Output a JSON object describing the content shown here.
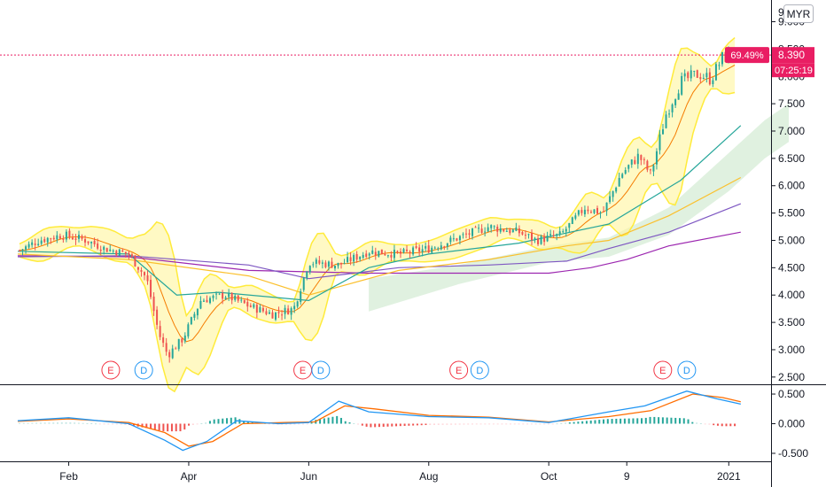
{
  "currency": "MYR",
  "chart_data": {
    "type": "candlestick",
    "price_axis": {
      "range": [
        2.4,
        9.3
      ],
      "ticks": [
        "9.000",
        "8.500",
        "8.000",
        "7.500",
        "7.000",
        "6.500",
        "6.000",
        "5.500",
        "5.000",
        "4.500",
        "4.000",
        "3.500",
        "3.000",
        "2.500"
      ],
      "top_partial": "9"
    },
    "time_axis": {
      "labels": [
        {
          "label": "Feb",
          "t": 1.0
        },
        {
          "label": "Apr",
          "t": 3.0
        },
        {
          "label": "Jun",
          "t": 5.0
        },
        {
          "label": "Aug",
          "t": 7.0
        },
        {
          "label": "Oct",
          "t": 9.0
        },
        {
          "label": "9",
          "t": 10.3
        },
        {
          "label": "2021",
          "t": 12.0
        }
      ],
      "range": [
        0.15,
        13.0
      ]
    },
    "last_price": {
      "value": 8.39,
      "label": "8.390",
      "change": "69.49%",
      "countdown": "07:25:19",
      "color": "#e91e63"
    },
    "events": [
      {
        "kind": "E",
        "t": 1.7,
        "color": "#f23645"
      },
      {
        "kind": "D",
        "t": 2.25,
        "color": "#2196f3"
      },
      {
        "kind": "E",
        "t": 4.9,
        "color": "#f23645"
      },
      {
        "kind": "D",
        "t": 5.2,
        "color": "#2196f3"
      },
      {
        "kind": "E",
        "t": 7.5,
        "color": "#f23645"
      },
      {
        "kind": "D",
        "t": 7.85,
        "color": "#2196f3"
      },
      {
        "kind": "E",
        "t": 10.9,
        "color": "#f23645"
      },
      {
        "kind": "D",
        "t": 11.3,
        "color": "#2196f3"
      }
    ],
    "price_path": [
      [
        0.15,
        4.8
      ],
      [
        0.5,
        5.0
      ],
      [
        0.9,
        5.1
      ],
      [
        1.3,
        5.0
      ],
      [
        1.6,
        4.85
      ],
      [
        2.0,
        4.75
      ],
      [
        2.3,
        4.3
      ],
      [
        2.5,
        3.3
      ],
      [
        2.65,
        2.9
      ],
      [
        2.9,
        3.2
      ],
      [
        3.2,
        3.9
      ],
      [
        3.6,
        4.0
      ],
      [
        4.0,
        3.8
      ],
      [
        4.4,
        3.65
      ],
      [
        4.75,
        3.75
      ],
      [
        5.0,
        4.6
      ],
      [
        5.5,
        4.55
      ],
      [
        6.0,
        4.8
      ],
      [
        6.5,
        4.75
      ],
      [
        7.0,
        4.85
      ],
      [
        7.5,
        5.05
      ],
      [
        8.0,
        5.25
      ],
      [
        8.5,
        5.15
      ],
      [
        8.8,
        5.0
      ],
      [
        9.2,
        5.1
      ],
      [
        9.6,
        5.6
      ],
      [
        9.9,
        5.5
      ],
      [
        10.2,
        6.2
      ],
      [
        10.5,
        6.55
      ],
      [
        10.7,
        6.2
      ],
      [
        10.95,
        7.3
      ],
      [
        11.2,
        7.9
      ],
      [
        11.5,
        8.05
      ],
      [
        11.7,
        7.95
      ],
      [
        11.9,
        8.35
      ],
      [
        12.1,
        8.39
      ]
    ],
    "overlays": {
      "sma_long": [
        [
          0.15,
          4.72
        ],
        [
          2.0,
          4.7
        ],
        [
          4.0,
          4.45
        ],
        [
          6.0,
          4.4
        ],
        [
          8.0,
          4.4
        ],
        [
          9.0,
          4.4
        ],
        [
          9.7,
          4.5
        ],
        [
          10.3,
          4.65
        ],
        [
          11.0,
          4.9
        ],
        [
          12.2,
          5.15
        ]
      ],
      "sma_mid": [
        [
          0.15,
          4.7
        ],
        [
          2.0,
          4.72
        ],
        [
          4.0,
          4.55
        ],
        [
          5.0,
          4.3
        ],
        [
          6.5,
          4.5
        ],
        [
          8.0,
          4.55
        ],
        [
          9.3,
          4.62
        ],
        [
          10.0,
          4.85
        ],
        [
          11.0,
          5.15
        ],
        [
          12.2,
          5.67
        ]
      ],
      "sma_short": [
        [
          0.15,
          4.75
        ],
        [
          2.0,
          4.65
        ],
        [
          4.0,
          4.35
        ],
        [
          5.0,
          4.0
        ],
        [
          6.5,
          4.45
        ],
        [
          8.0,
          4.65
        ],
        [
          9.3,
          4.9
        ],
        [
          10.0,
          5.0
        ],
        [
          11.0,
          5.45
        ],
        [
          12.2,
          6.15
        ]
      ],
      "ema_blue": [
        [
          0.15,
          4.8
        ],
        [
          2.0,
          4.75
        ],
        [
          2.8,
          4.0
        ],
        [
          3.5,
          4.05
        ],
        [
          5.0,
          3.9
        ],
        [
          6.0,
          4.5
        ],
        [
          7.0,
          4.75
        ],
        [
          8.5,
          4.95
        ],
        [
          10.0,
          5.3
        ],
        [
          11.2,
          6.1
        ],
        [
          12.2,
          7.1
        ]
      ]
    },
    "macd": {
      "range": [
        -0.62,
        0.62
      ],
      "ticks": [
        "0.500",
        "0.000",
        "-0.500"
      ],
      "macd_line": [
        [
          0.15,
          0.05
        ],
        [
          1.0,
          0.1
        ],
        [
          2.0,
          0.0
        ],
        [
          2.6,
          -0.28
        ],
        [
          2.9,
          -0.45
        ],
        [
          3.3,
          -0.3
        ],
        [
          3.8,
          0.05
        ],
        [
          4.5,
          0.0
        ],
        [
          5.0,
          0.02
        ],
        [
          5.5,
          0.38
        ],
        [
          6.0,
          0.2
        ],
        [
          7.0,
          0.12
        ],
        [
          8.0,
          0.1
        ],
        [
          9.0,
          0.02
        ],
        [
          10.0,
          0.2
        ],
        [
          10.6,
          0.3
        ],
        [
          11.3,
          0.55
        ],
        [
          11.8,
          0.42
        ],
        [
          12.2,
          0.33
        ]
      ],
      "signal_line": [
        [
          0.15,
          0.04
        ],
        [
          1.0,
          0.08
        ],
        [
          2.0,
          0.02
        ],
        [
          2.6,
          -0.15
        ],
        [
          3.0,
          -0.38
        ],
        [
          3.4,
          -0.3
        ],
        [
          3.9,
          0.0
        ],
        [
          4.6,
          0.02
        ],
        [
          5.1,
          0.03
        ],
        [
          5.6,
          0.3
        ],
        [
          6.1,
          0.25
        ],
        [
          7.0,
          0.14
        ],
        [
          8.0,
          0.11
        ],
        [
          9.0,
          0.03
        ],
        [
          10.0,
          0.12
        ],
        [
          10.7,
          0.22
        ],
        [
          11.4,
          0.5
        ],
        [
          11.9,
          0.44
        ],
        [
          12.2,
          0.37
        ]
      ]
    }
  }
}
